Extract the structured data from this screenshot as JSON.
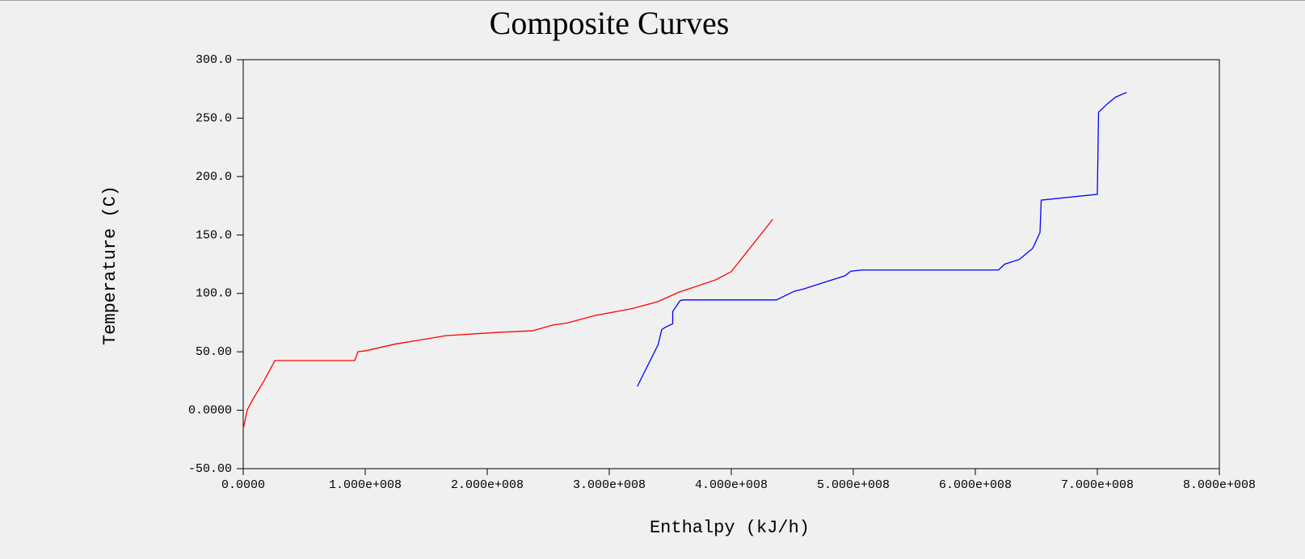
{
  "chart_data": {
    "type": "line",
    "title": "Composite Curves",
    "x_label": "Enthalpy (kJ/h)",
    "y_label": "Temperature (C)",
    "xlim": [
      0,
      800000000
    ],
    "ylim": [
      -50,
      300
    ],
    "xticks": [
      {
        "value": 0,
        "label": "0.0000"
      },
      {
        "value": 100000000,
        "label": "1.000e+008"
      },
      {
        "value": 200000000,
        "label": "2.000e+008"
      },
      {
        "value": 300000000,
        "label": "3.000e+008"
      },
      {
        "value": 400000000,
        "label": "4.000e+008"
      },
      {
        "value": 500000000,
        "label": "5.000e+008"
      },
      {
        "value": 600000000,
        "label": "6.000e+008"
      },
      {
        "value": 700000000,
        "label": "7.000e+008"
      },
      {
        "value": 800000000,
        "label": "8.000e+008"
      }
    ],
    "yticks": [
      {
        "value": -50,
        "label": "-50.00"
      },
      {
        "value": 0,
        "label": "0.0000"
      },
      {
        "value": 50,
        "label": "50.00"
      },
      {
        "value": 100,
        "label": "100.0"
      },
      {
        "value": 150,
        "label": "150.0"
      },
      {
        "value": 200,
        "label": "200.0"
      },
      {
        "value": 250,
        "label": "250.0"
      },
      {
        "value": 300,
        "label": "300.0"
      }
    ],
    "series": [
      {
        "color": "#ff0000",
        "x": [
          0,
          3400000,
          8200000,
          16400000,
          26000000,
          91400000,
          94000000,
          101000000,
          125000000,
          142000000,
          166000000,
          210000000,
          237000000,
          254000000,
          265000000,
          288000000,
          319000000,
          340000000,
          357000000,
          387000000,
          400000000,
          434000000
        ],
        "values": [
          -16,
          0.5,
          9.8,
          24,
          42.5,
          42.5,
          50,
          51,
          56.7,
          59.6,
          63.8,
          66.7,
          68,
          73,
          74.5,
          81,
          87,
          93,
          101,
          111.5,
          118.6,
          163.4
        ]
      },
      {
        "color": "#0000ff",
        "x": [
          323000000,
          340000000,
          343000000,
          346000000,
          352000000,
          352000000,
          358000000,
          360000000,
          437000000,
          452000000,
          459000000,
          493000000,
          498000000,
          507000000,
          619000000,
          624000000,
          636000000,
          647000000,
          653000000,
          654000000,
          700000000,
          701000000,
          708000000,
          715000000,
          724000000
        ],
        "values": [
          20.4,
          56,
          69,
          71,
          74,
          84.5,
          93.7,
          94.4,
          94.4,
          102,
          103.7,
          115,
          119,
          120,
          120,
          125,
          129,
          138.5,
          152,
          179.8,
          184.8,
          255,
          262,
          268,
          272
        ]
      }
    ]
  }
}
